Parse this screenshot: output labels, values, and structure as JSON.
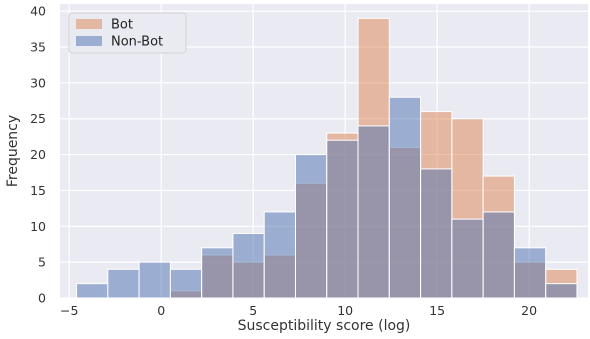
{
  "chart_data": {
    "type": "bar",
    "subtype": "overlapping-histogram",
    "title": "",
    "xlabel": "Susceptibility score (log)",
    "ylabel": "Frequency",
    "xlim": [
      -5.5,
      23.2
    ],
    "ylim": [
      0,
      41
    ],
    "xticks": [
      -5,
      0,
      5,
      10,
      15,
      20
    ],
    "yticks": [
      0,
      5,
      10,
      15,
      20,
      25,
      30,
      35,
      40
    ],
    "grid": true,
    "legend_position": "top-left",
    "bin_edges": [
      -4.6,
      -2.9,
      -1.2,
      0.5,
      2.2,
      3.9,
      5.6,
      7.3,
      9.0,
      10.7,
      12.4,
      14.1,
      15.8,
      17.5,
      19.2,
      20.9,
      22.6
    ],
    "series": [
      {
        "name": "Bot",
        "color": "#dd8452",
        "values": [
          0,
          0,
          0,
          1,
          6,
          5,
          6,
          16,
          23,
          39,
          21,
          26,
          25,
          17,
          5,
          4
        ]
      },
      {
        "name": "Non-Bot",
        "color": "#4c72b0",
        "values": [
          2,
          4,
          5,
          4,
          7,
          9,
          12,
          20,
          22,
          24,
          28,
          18,
          11,
          12,
          7,
          2
        ]
      }
    ]
  }
}
